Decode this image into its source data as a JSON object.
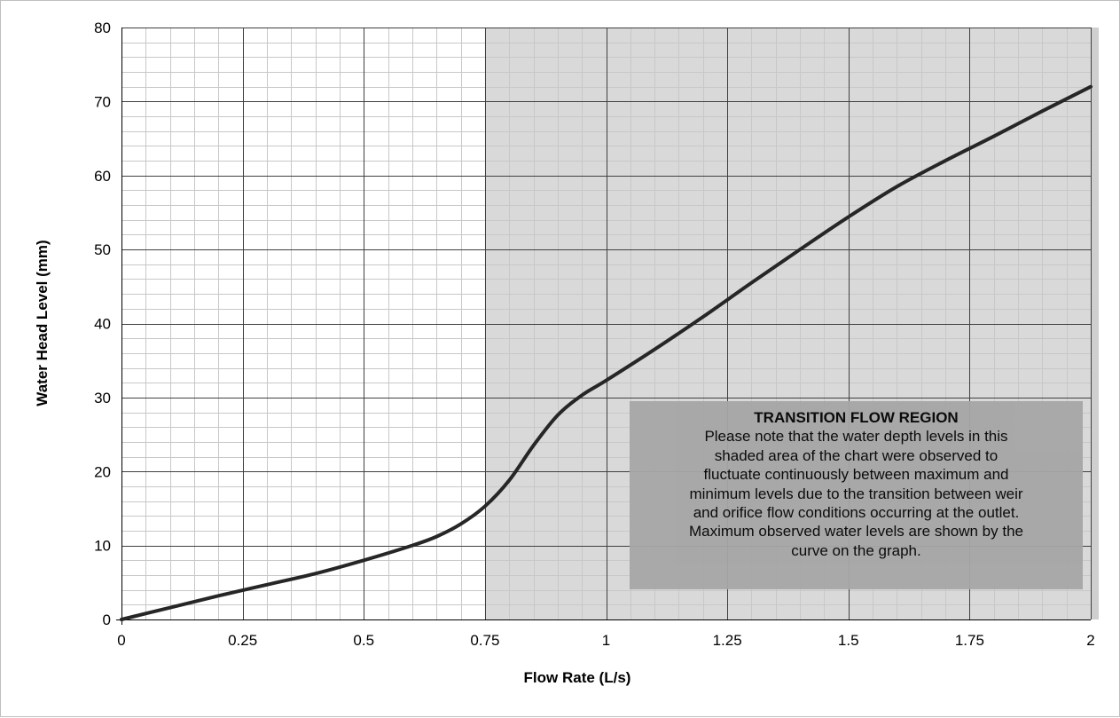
{
  "chart_data": {
    "type": "line",
    "title": "",
    "xlabel": "Flow Rate (L/s)",
    "ylabel": "Water Head Level (mm)",
    "xlim": [
      0,
      2
    ],
    "ylim": [
      0,
      80
    ],
    "x_ticks": [
      0,
      0.25,
      0.5,
      0.75,
      1,
      1.25,
      1.5,
      1.75,
      2
    ],
    "x_tick_labels": [
      "0",
      "0.25",
      "0.5",
      "0.75",
      "1",
      "1.25",
      "1.5",
      "1.75",
      "2"
    ],
    "y_ticks": [
      0,
      10,
      20,
      30,
      40,
      50,
      60,
      70,
      80
    ],
    "y_tick_labels": [
      "0",
      "10",
      "20",
      "30",
      "40",
      "50",
      "60",
      "70",
      "80"
    ],
    "x_minor_step": 0.05,
    "y_minor_step": 2,
    "grid": true,
    "shaded_region": {
      "x_start": 0.75,
      "x_end": 2,
      "color": "#d9d9d9"
    },
    "series": [
      {
        "color": "#262626",
        "x": [
          0,
          0.1,
          0.2,
          0.3,
          0.4,
          0.5,
          0.6,
          0.65,
          0.7,
          0.75,
          0.8,
          0.85,
          0.9,
          0.95,
          1.0,
          1.1,
          1.2,
          1.3,
          1.4,
          1.5,
          1.6,
          1.7,
          1.8,
          1.9,
          2.0
        ],
        "y": [
          0,
          1.6,
          3.2,
          4.7,
          6.2,
          8,
          10,
          11.2,
          12.9,
          15.3,
          18.8,
          23.5,
          27.6,
          30.3,
          32.3,
          36.5,
          40.9,
          45.5,
          50,
          54.4,
          58.5,
          62,
          65.3,
          68.7,
          72
        ]
      }
    ],
    "annotation": {
      "title": "TRANSITION FLOW REGION",
      "lines": [
        "Please note that the water depth levels in this",
        "shaded area of the chart were observed to",
        "fluctuate continuously between maximum and",
        "minimum levels due to the transition between weir",
        "and orifice flow conditions occurring at the outlet.",
        "Maximum observed water levels are shown by the",
        "curve on the graph."
      ]
    },
    "colors": {
      "major_grid": "#404040",
      "minor_grid": "#c8c8c8",
      "shade": "#d9d9d9",
      "shade_edge": "#cfcfcf",
      "note_box": "#a6a6a6",
      "line": "#262626"
    }
  }
}
